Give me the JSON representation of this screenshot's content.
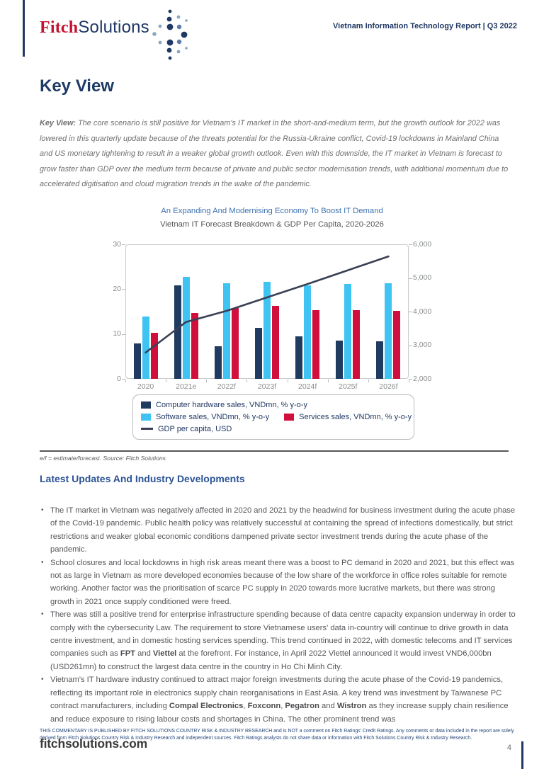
{
  "header": {
    "logo_fitch": "Fitch",
    "logo_solutions": "Solutions",
    "report_title": "Vietnam Information Technology Report | Q3 2022"
  },
  "key_view": {
    "title": "Key View",
    "paragraph_segments": [
      {
        "t": "Key View: ",
        "b": true
      },
      {
        "t": "The core scenario is still positive for Vietnam's IT market in the short-and-medium term, but the growth outlook for 2022 was lowered in this quarterly update because of the threats potential for the Russia-Ukraine conflict, Covid-19 lockdowns in Mainland China and US monetary tightening to result in a weaker global growth outlook. Even with this downside, the IT market in Vietnam is forecast to grow faster than GDP over the medium term because of private and public sector modernisation trends, with additional momentum due to accelerated digitisation and cloud migration trends in the wake of the pandemic.",
        "b": false
      }
    ]
  },
  "chart_data": {
    "type": "bar",
    "title": "An Expanding And Modernising Economy To Boost IT Demand",
    "subtitle": "Vietnam IT Forecast Breakdown & GDP Per Capita, 2020-2026",
    "categories": [
      "2020",
      "2021e",
      "2022f",
      "2023f",
      "2024f",
      "2025f",
      "2026f"
    ],
    "series": [
      {
        "name": "Computer hardware sales, VNDmn, % y-o-y",
        "type": "bar",
        "axis": "left",
        "color": "#1f3b60",
        "values": [
          7.9,
          20.8,
          7.2,
          11.3,
          9.5,
          8.6,
          8.3
        ]
      },
      {
        "name": "Software sales, VNDmn, % y-o-y",
        "type": "bar",
        "axis": "left",
        "color": "#3fc3f2",
        "values": [
          13.9,
          22.8,
          21.4,
          21.7,
          20.9,
          21.2,
          21.4
        ]
      },
      {
        "name": "Services sales, VNDmn, % y-o-y",
        "type": "bar",
        "axis": "left",
        "color": "#d00f3c",
        "values": [
          10.3,
          14.7,
          15.8,
          16.3,
          15.4,
          15.3,
          15.2
        ]
      },
      {
        "name": "GDP per capita, USD",
        "type": "line",
        "axis": "right",
        "color": "#3a3f55",
        "values": [
          2780,
          3690,
          4020,
          4420,
          4820,
          5230,
          5640
        ]
      }
    ],
    "left_axis": {
      "min": 0,
      "max": 30,
      "ticks": [
        0,
        10,
        20,
        30
      ]
    },
    "right_axis": {
      "min": 2000,
      "max": 6000,
      "ticks": [
        2000,
        3000,
        4000,
        5000,
        6000
      ]
    },
    "grid": false,
    "legend_position": "bottom",
    "footnote": "e/f = estimate/forecast. Source: Fitch Solutions"
  },
  "section": {
    "heading": "Latest Updates And Industry Developments",
    "bullets": [
      {
        "segments": [
          {
            "t": "The IT market in Vietnam was negatively affected in 2020 and 2021 by the headwind for business investment during the acute phase of the Covid-19 pandemic. Public health policy was relatively successful at containing the spread of infections domestically, but strict restrictions and weaker global economic conditions dampened private sector investment trends during the acute phase of the pandemic.",
            "b": false
          }
        ]
      },
      {
        "segments": [
          {
            "t": "School closures and local lockdowns in high risk areas meant there was a boost to PC demand in 2020 and 2021, but this effect was not as large in Vietnam as more developed economies because of the low share of the workforce in office roles suitable for remote working. Another factor was the prioritisation of scarce PC supply in 2020 towards more lucrative markets, but there was strong growth in 2021 once supply conditioned were freed.",
            "b": false
          }
        ]
      },
      {
        "segments": [
          {
            "t": "There was still a positive trend for enterprise infrastructure spending because of data centre capacity expansion underway in order to comply with the cybersecurity Law. The requirement to store Vietnamese users' data in-country will continue to drive growth in data centre investment, and in domestic hosting services spending. This trend continued in 2022, with domestic telecoms and IT services companies such as ",
            "b": false
          },
          {
            "t": "FPT",
            "b": true
          },
          {
            "t": " and ",
            "b": false
          },
          {
            "t": "Viettel",
            "b": true
          },
          {
            "t": " at the forefront. For instance, in April 2022 Viettel announced it would invest VND6,000bn (USD261mn) to construct the largest data centre in the country in Ho Chi Minh City.",
            "b": false
          }
        ]
      },
      {
        "segments": [
          {
            "t": "Vietnam's IT hardware industry continued to attract major foreign investments during the acute phase of the Covid-19 pandemics, reflecting its important role in electronics supply chain reorganisations in East Asia. A key trend was investment by Taiwanese PC contract manufacturers, including ",
            "b": false
          },
          {
            "t": "Compal Electronics",
            "b": true
          },
          {
            "t": ", ",
            "b": false
          },
          {
            "t": "Foxconn",
            "b": true
          },
          {
            "t": ", ",
            "b": false
          },
          {
            "t": "Pegatron",
            "b": true
          },
          {
            "t": " and ",
            "b": false
          },
          {
            "t": "Wistron",
            "b": true
          },
          {
            "t": " as they increase supply chain resilience and reduce exposure to rising labour costs and shortages in China. The other prominent trend was",
            "b": false
          }
        ]
      }
    ]
  },
  "footer": {
    "disclaimer": "THIS COMMENTARY IS PUBLISHED BY FITCH SOLUTIONS COUNTRY RISK & INDUSTRY RESEARCH and is NOT a comment on Fitch Ratings' Credit Ratings. Any comments or data included in the report are solely derived from Fitch Solutions Country Risk & Industry Research and independent sources. Fitch Ratings analysts do not share data or information with Fitch Solutions Country Risk & Industry Research.",
    "site": "fitchsolutions.com",
    "page_number": "4"
  }
}
